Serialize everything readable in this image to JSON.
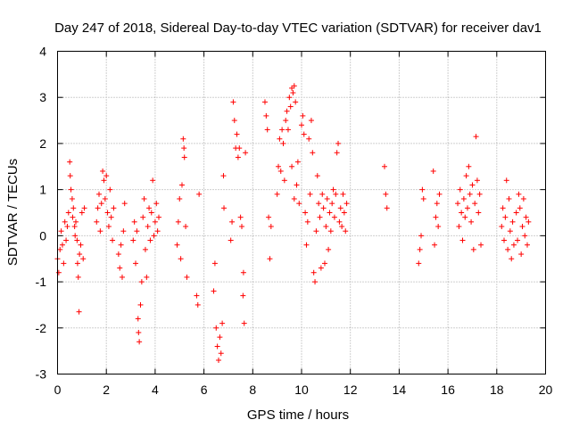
{
  "chart_data": {
    "type": "scatter",
    "title": "Day 247 of 2018, Sidereal Day-to-day VTEC variation (SDTVAR) for receiver dav1",
    "xlabel": "GPS time / hours",
    "ylabel": "SDTVAR / TECUs",
    "xlim": [
      0,
      20
    ],
    "ylim": [
      -3,
      4
    ],
    "xticks": [
      0,
      2,
      4,
      6,
      8,
      10,
      12,
      14,
      16,
      18,
      20
    ],
    "yticks": [
      -3,
      -2,
      -1,
      0,
      1,
      2,
      3,
      4
    ],
    "grid": true,
    "marker": "+",
    "color": "#ff0000",
    "series": [
      {
        "name": "dav1",
        "points": [
          [
            0.0,
            -0.5
          ],
          [
            0.05,
            -0.8
          ],
          [
            0.1,
            -0.3
          ],
          [
            0.15,
            0.1
          ],
          [
            0.2,
            -0.2
          ],
          [
            0.25,
            -0.6
          ],
          [
            0.3,
            0.3
          ],
          [
            0.35,
            -0.1
          ],
          [
            0.4,
            0.2
          ],
          [
            0.45,
            0.5
          ],
          [
            0.5,
            1.6
          ],
          [
            0.52,
            1.3
          ],
          [
            0.55,
            1.0
          ],
          [
            0.6,
            0.8
          ],
          [
            0.62,
            0.4
          ],
          [
            0.65,
            0.6
          ],
          [
            0.7,
            0.2
          ],
          [
            0.72,
            0.0
          ],
          [
            0.75,
            0.3
          ],
          [
            0.8,
            -0.1
          ],
          [
            0.82,
            -0.6
          ],
          [
            0.85,
            -0.9
          ],
          [
            0.88,
            -1.65
          ],
          [
            0.9,
            -0.4
          ],
          [
            0.95,
            -0.2
          ],
          [
            1.0,
            0.5
          ],
          [
            1.05,
            -0.5
          ],
          [
            1.1,
            0.6
          ],
          [
            1.6,
            0.3
          ],
          [
            1.65,
            0.6
          ],
          [
            1.7,
            0.9
          ],
          [
            1.75,
            0.1
          ],
          [
            1.8,
            0.7
          ],
          [
            1.85,
            1.4
          ],
          [
            1.9,
            1.2
          ],
          [
            1.95,
            0.8
          ],
          [
            2.0,
            1.3
          ],
          [
            2.05,
            0.5
          ],
          [
            2.1,
            0.2
          ],
          [
            2.15,
            1.0
          ],
          [
            2.2,
            0.4
          ],
          [
            2.25,
            -0.1
          ],
          [
            2.3,
            0.6
          ],
          [
            2.5,
            -0.4
          ],
          [
            2.55,
            -0.7
          ],
          [
            2.6,
            -0.2
          ],
          [
            2.65,
            -0.9
          ],
          [
            2.7,
            0.1
          ],
          [
            2.75,
            0.7
          ],
          [
            3.1,
            -0.1
          ],
          [
            3.15,
            0.3
          ],
          [
            3.2,
            -0.6
          ],
          [
            3.25,
            0.1
          ],
          [
            3.3,
            -1.8
          ],
          [
            3.32,
            -2.1
          ],
          [
            3.35,
            -2.3
          ],
          [
            3.4,
            -1.5
          ],
          [
            3.45,
            -1.0
          ],
          [
            3.5,
            0.4
          ],
          [
            3.55,
            0.8
          ],
          [
            3.6,
            -0.3
          ],
          [
            3.65,
            -0.9
          ],
          [
            3.7,
            0.2
          ],
          [
            3.75,
            0.6
          ],
          [
            3.8,
            -0.1
          ],
          [
            3.85,
            0.5
          ],
          [
            3.9,
            1.2
          ],
          [
            3.95,
            0.0
          ],
          [
            4.0,
            0.3
          ],
          [
            4.05,
            0.7
          ],
          [
            4.1,
            0.1
          ],
          [
            4.15,
            0.4
          ],
          [
            4.9,
            -0.2
          ],
          [
            4.95,
            0.3
          ],
          [
            5.0,
            0.8
          ],
          [
            5.05,
            -0.5
          ],
          [
            5.1,
            1.1
          ],
          [
            5.15,
            2.1
          ],
          [
            5.18,
            1.9
          ],
          [
            5.2,
            1.7
          ],
          [
            5.25,
            0.2
          ],
          [
            5.3,
            -0.9
          ],
          [
            5.7,
            -1.3
          ],
          [
            5.75,
            -1.5
          ],
          [
            5.8,
            0.9
          ],
          [
            6.4,
            -1.2
          ],
          [
            6.45,
            -0.6
          ],
          [
            6.5,
            -2.0
          ],
          [
            6.55,
            -2.4
          ],
          [
            6.6,
            -2.7
          ],
          [
            6.65,
            -2.2
          ],
          [
            6.7,
            -2.55
          ],
          [
            6.75,
            -1.9
          ],
          [
            6.8,
            1.3
          ],
          [
            6.82,
            0.6
          ],
          [
            7.1,
            -0.1
          ],
          [
            7.15,
            0.3
          ],
          [
            7.2,
            2.9
          ],
          [
            7.25,
            2.5
          ],
          [
            7.3,
            1.9
          ],
          [
            7.35,
            2.2
          ],
          [
            7.4,
            1.7
          ],
          [
            7.45,
            1.9
          ],
          [
            7.5,
            0.4
          ],
          [
            7.55,
            0.2
          ],
          [
            7.6,
            -1.3
          ],
          [
            7.62,
            -0.8
          ],
          [
            7.65,
            -1.9
          ],
          [
            7.7,
            1.8
          ],
          [
            8.5,
            2.9
          ],
          [
            8.55,
            2.6
          ],
          [
            8.6,
            2.3
          ],
          [
            8.65,
            0.4
          ],
          [
            8.7,
            -0.5
          ],
          [
            8.75,
            0.2
          ],
          [
            9.0,
            0.9
          ],
          [
            9.05,
            1.5
          ],
          [
            9.1,
            2.1
          ],
          [
            9.15,
            1.4
          ],
          [
            9.2,
            2.3
          ],
          [
            9.25,
            2.0
          ],
          [
            9.3,
            1.2
          ],
          [
            9.35,
            2.5
          ],
          [
            9.4,
            2.7
          ],
          [
            9.45,
            2.3
          ],
          [
            9.5,
            3.0
          ],
          [
            9.55,
            2.8
          ],
          [
            9.6,
            3.2
          ],
          [
            9.65,
            3.1
          ],
          [
            9.7,
            3.25
          ],
          [
            9.75,
            2.9
          ],
          [
            9.6,
            1.5
          ],
          [
            9.7,
            0.8
          ],
          [
            9.8,
            1.1
          ],
          [
            9.85,
            1.6
          ],
          [
            9.9,
            0.7
          ],
          [
            10.0,
            2.4
          ],
          [
            10.05,
            2.6
          ],
          [
            10.1,
            2.2
          ],
          [
            10.15,
            0.5
          ],
          [
            10.2,
            -0.2
          ],
          [
            10.25,
            0.3
          ],
          [
            10.3,
            2.1
          ],
          [
            10.35,
            0.9
          ],
          [
            10.4,
            2.5
          ],
          [
            10.45,
            1.8
          ],
          [
            10.5,
            -0.8
          ],
          [
            10.55,
            -1.0
          ],
          [
            10.6,
            0.1
          ],
          [
            10.65,
            1.3
          ],
          [
            10.7,
            0.7
          ],
          [
            10.75,
            0.4
          ],
          [
            10.8,
            -0.7
          ],
          [
            10.85,
            0.9
          ],
          [
            10.9,
            0.6
          ],
          [
            10.95,
            -0.6
          ],
          [
            11.0,
            0.2
          ],
          [
            11.05,
            0.8
          ],
          [
            11.1,
            -0.3
          ],
          [
            11.15,
            0.5
          ],
          [
            11.2,
            0.1
          ],
          [
            11.25,
            0.7
          ],
          [
            11.3,
            1.0
          ],
          [
            11.35,
            0.4
          ],
          [
            11.4,
            0.9
          ],
          [
            11.45,
            1.8
          ],
          [
            11.5,
            2.0
          ],
          [
            11.55,
            0.3
          ],
          [
            11.6,
            0.6
          ],
          [
            11.65,
            0.2
          ],
          [
            11.7,
            0.9
          ],
          [
            11.75,
            0.5
          ],
          [
            11.8,
            0.1
          ],
          [
            11.85,
            0.7
          ],
          [
            13.4,
            1.5
          ],
          [
            13.45,
            0.9
          ],
          [
            13.5,
            0.6
          ],
          [
            14.8,
            -0.6
          ],
          [
            14.85,
            -0.3
          ],
          [
            14.9,
            0.0
          ],
          [
            14.95,
            1.0
          ],
          [
            15.0,
            0.8
          ],
          [
            15.4,
            1.4
          ],
          [
            15.45,
            -0.2
          ],
          [
            15.5,
            0.4
          ],
          [
            15.55,
            0.7
          ],
          [
            15.6,
            0.2
          ],
          [
            15.65,
            0.9
          ],
          [
            16.4,
            0.7
          ],
          [
            16.45,
            0.2
          ],
          [
            16.5,
            1.0
          ],
          [
            16.55,
            0.5
          ],
          [
            16.6,
            -0.1
          ],
          [
            16.65,
            0.8
          ],
          [
            16.7,
            0.4
          ],
          [
            16.75,
            1.3
          ],
          [
            16.8,
            0.6
          ],
          [
            16.85,
            1.5
          ],
          [
            16.9,
            0.9
          ],
          [
            16.95,
            0.3
          ],
          [
            17.0,
            1.1
          ],
          [
            17.05,
            -0.3
          ],
          [
            17.1,
            0.7
          ],
          [
            17.15,
            2.15
          ],
          [
            17.2,
            1.2
          ],
          [
            17.25,
            0.5
          ],
          [
            17.3,
            0.9
          ],
          [
            17.35,
            -0.2
          ],
          [
            18.2,
            0.2
          ],
          [
            18.25,
            0.6
          ],
          [
            18.3,
            -0.1
          ],
          [
            18.35,
            0.4
          ],
          [
            18.4,
            1.2
          ],
          [
            18.45,
            -0.3
          ],
          [
            18.5,
            0.8
          ],
          [
            18.55,
            0.1
          ],
          [
            18.6,
            -0.5
          ],
          [
            18.65,
            0.3
          ],
          [
            18.7,
            -0.2
          ],
          [
            18.8,
            0.5
          ],
          [
            18.85,
            -0.1
          ],
          [
            18.9,
            0.9
          ],
          [
            18.95,
            0.6
          ],
          [
            19.0,
            -0.4
          ],
          [
            19.05,
            0.2
          ],
          [
            19.1,
            0.8
          ],
          [
            19.15,
            0.0
          ],
          [
            19.2,
            0.4
          ],
          [
            19.25,
            -0.2
          ],
          [
            19.3,
            0.3
          ]
        ]
      }
    ]
  }
}
